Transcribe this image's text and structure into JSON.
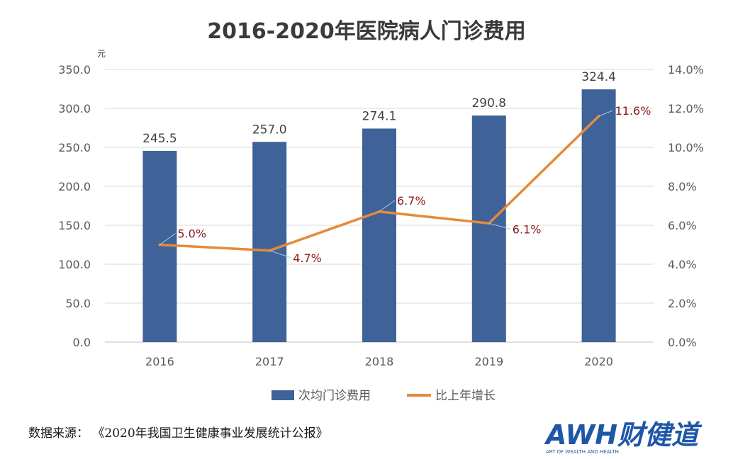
{
  "chart_data": {
    "type": "bar",
    "title": "2016-2020年医院病人门诊费用",
    "y_unit": "元",
    "categories": [
      "2016",
      "2017",
      "2018",
      "2019",
      "2020"
    ],
    "series": [
      {
        "name": "次均门诊费用",
        "type": "bar",
        "axis": "left",
        "values": [
          245.5,
          257.0,
          274.1,
          290.8,
          324.4
        ],
        "labels": [
          "245.5",
          "257.0",
          "274.1",
          "290.8",
          "324.4"
        ]
      },
      {
        "name": "比上年增长",
        "type": "line",
        "axis": "right",
        "values": [
          5.0,
          4.7,
          6.7,
          6.1,
          11.6
        ],
        "labels": [
          "5.0%",
          "4.7%",
          "6.7%",
          "6.1%",
          "11.6%"
        ]
      }
    ],
    "ylim": [
      0,
      350
    ],
    "yticks": [
      "0.0",
      "50.0",
      "100.0",
      "150.0",
      "200.0",
      "250.0",
      "300.0",
      "350.0"
    ],
    "y2lim": [
      0,
      14
    ],
    "y2ticks": [
      "0.0%",
      "2.0%",
      "4.0%",
      "6.0%",
      "8.0%",
      "10.0%",
      "12.0%",
      "14.0%"
    ],
    "grid": true,
    "legend": "bottom",
    "colors": {
      "bar": "#3f6298",
      "line": "#e58a3a",
      "pct_label": "#8b1a1a"
    }
  },
  "source_note": "数据来源：  《2020年我国卫生健康事业发展统计公报》",
  "logo": {
    "main": "AWH财健道",
    "tagline": "ART OF WEALTH AND HEALTH"
  }
}
